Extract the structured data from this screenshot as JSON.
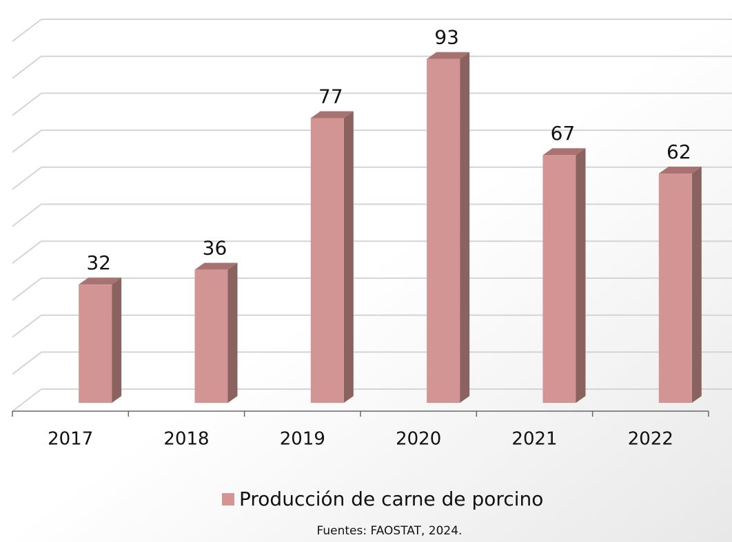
{
  "chart_data": {
    "type": "bar",
    "categories": [
      "2017",
      "2018",
      "2019",
      "2020",
      "2021",
      "2022"
    ],
    "series": [
      {
        "name": "Producción de carne de porcino",
        "color": "#d39494",
        "values": [
          32,
          36,
          77,
          93,
          67,
          62
        ]
      }
    ],
    "ylim": [
      0,
      100
    ],
    "yticks": [
      0,
      10,
      20,
      30,
      40,
      50,
      60,
      70,
      80,
      90,
      100
    ],
    "grid": true,
    "legend": "bottom",
    "source": "Fuentes: FAOSTAT, 2024."
  }
}
